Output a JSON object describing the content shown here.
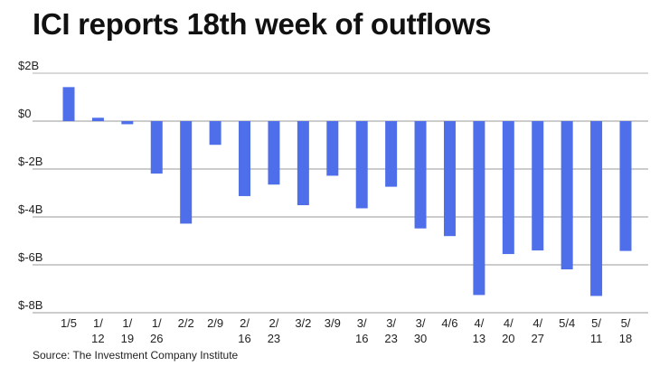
{
  "chart_data": {
    "type": "bar",
    "title": "ICI reports 18th week of outflows",
    "source": "Source: The Investment Company Institute",
    "xlabel": "",
    "ylabel": "",
    "ylim": [
      -8,
      2
    ],
    "yticks": [
      2,
      0,
      -2,
      -4,
      -6,
      -8
    ],
    "ytick_labels": [
      "$2B",
      "$0",
      "$-2B",
      "$-4B",
      "$-6B",
      "$-8B"
    ],
    "grid": true,
    "bar_color": "#4f6fea",
    "categories": [
      "1/5",
      "1/12",
      "1/19",
      "1/26",
      "2/2",
      "2/9",
      "2/16",
      "2/23",
      "3/2",
      "3/9",
      "3/16",
      "3/23",
      "3/30",
      "4/6",
      "4/13",
      "4/20",
      "4/27",
      "5/4",
      "5/11",
      "5/18"
    ],
    "category_label_lines": [
      [
        "1/5"
      ],
      [
        "1/",
        "12"
      ],
      [
        "1/",
        "19"
      ],
      [
        "1/",
        "26"
      ],
      [
        "2/2"
      ],
      [
        "2/9"
      ],
      [
        "2/",
        "16"
      ],
      [
        "2/",
        "23"
      ],
      [
        "3/2"
      ],
      [
        "3/9"
      ],
      [
        "3/",
        "16"
      ],
      [
        "3/",
        "23"
      ],
      [
        "3/",
        "30"
      ],
      [
        "4/6"
      ],
      [
        "4/",
        "13"
      ],
      [
        "4/",
        "20"
      ],
      [
        "4/",
        "27"
      ],
      [
        "5/4"
      ],
      [
        "5/",
        "11"
      ],
      [
        "5/",
        "18"
      ]
    ],
    "values": [
      1.42,
      0.14,
      -0.13,
      -2.19,
      -4.28,
      -0.99,
      -3.13,
      -2.65,
      -3.51,
      -2.28,
      -3.64,
      -2.74,
      -4.48,
      -4.8,
      -7.26,
      -5.55,
      -5.4,
      -6.19,
      -7.3,
      -5.42
    ]
  }
}
